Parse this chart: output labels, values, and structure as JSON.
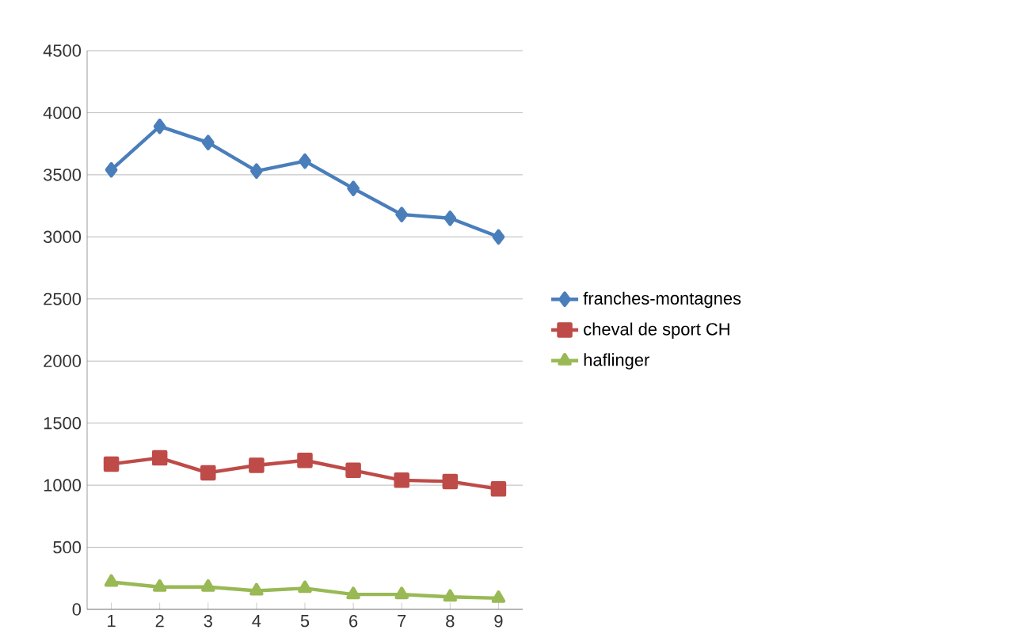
{
  "chart_data": {
    "type": "line",
    "categories": [
      "1",
      "2",
      "3",
      "4",
      "5",
      "6",
      "7",
      "8",
      "9"
    ],
    "series": [
      {
        "name": "franches-montagnes",
        "color": "#4a7ebb",
        "marker": "diamond",
        "values": [
          3540,
          3890,
          3760,
          3530,
          3610,
          3390,
          3180,
          3150,
          3000
        ]
      },
      {
        "name": "cheval de sport CH",
        "color": "#be4b48",
        "marker": "square",
        "values": [
          1170,
          1220,
          1100,
          1160,
          1200,
          1120,
          1040,
          1030,
          970
        ]
      },
      {
        "name": "haflinger",
        "color": "#98b954",
        "marker": "triangle",
        "values": [
          220,
          180,
          180,
          150,
          170,
          120,
          120,
          100,
          90
        ]
      }
    ],
    "ylim": [
      0,
      4500
    ],
    "yticks": [
      0,
      500,
      1000,
      1500,
      2000,
      2500,
      3000,
      3500,
      4000,
      4500
    ],
    "grid": "y",
    "legend": "right",
    "line_style": "solid"
  }
}
